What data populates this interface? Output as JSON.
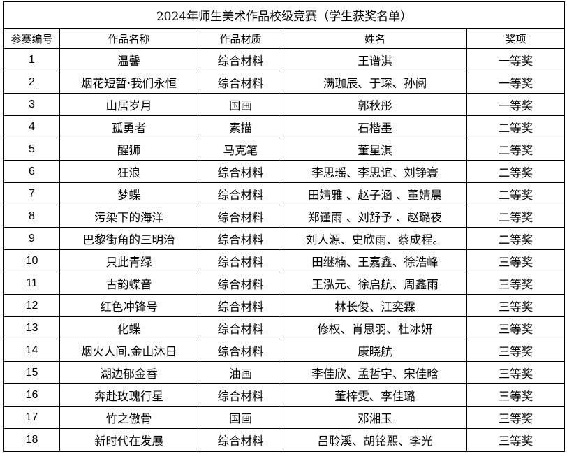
{
  "title": "2024年师生美术作品校级竞赛（学生获奖名单）",
  "headers": [
    "参赛编号",
    "作品名称",
    "作品材质",
    "姓名",
    "奖项"
  ],
  "rows": [
    [
      "1",
      "温馨",
      "综合材料",
      "王谱淇",
      "一等奖"
    ],
    [
      "2",
      "烟花短暂·我们永恒",
      "综合材料",
      "满珈辰、于琛、孙阅",
      "一等奖"
    ],
    [
      "3",
      "山居岁月",
      "国画",
      "郭秋彤",
      "一等奖"
    ],
    [
      "4",
      "孤勇者",
      "素描",
      "石楷墨",
      "二等奖"
    ],
    [
      "5",
      "醒狮",
      "马克笔",
      "董星淇",
      "二等奖"
    ],
    [
      "6",
      "狂浪",
      "综合材料",
      "李思瑶、李思谊、刘铮寰",
      "二等奖"
    ],
    [
      "7",
      "梦蝶",
      "综合材料",
      "田婧雅 、赵子涵 、董婧晨",
      "二等奖"
    ],
    [
      "8",
      "污染下的海洋",
      "综合材料",
      "郑谨雨 、刘舒予 、赵璐夜",
      "二等奖"
    ],
    [
      "9",
      "巴黎街角的三明治",
      "综合材料",
      "刘人源、史欣雨、蔡成程。",
      "二等奖"
    ],
    [
      "10",
      "只此青绿",
      "综合材料",
      "田继楠、王嘉鑫、徐浩峰",
      "三等奖"
    ],
    [
      "11",
      "古韵蝶音",
      "综合材料",
      "王泓元、徐启航、周鑫雨",
      "三等奖"
    ],
    [
      "12",
      "红色冲锋号",
      "综合材料",
      "林长俊、江奕霖",
      "三等奖"
    ],
    [
      "13",
      "化蝶",
      "综合材料",
      "修权、肖思羽、杜冰妍",
      "三等奖"
    ],
    [
      "14",
      "烟火人间.金山沐日",
      "综合材料",
      "康晓航",
      "三等奖"
    ],
    [
      "15",
      "湖边郁金香",
      "油画",
      "李佳欣、孟哲宇、宋佳晗",
      "三等奖"
    ],
    [
      "16",
      "奔赴玫瑰行星",
      "综合材料",
      "董梓雯、李佳璐",
      "三等奖"
    ],
    [
      "17",
      "竹之傲骨",
      "国画",
      "邓湘玉",
      "三等奖"
    ],
    [
      "18",
      "新时代在发展",
      "综合材料",
      "吕聆溪、胡铭熙、李光",
      "三等奖"
    ]
  ]
}
